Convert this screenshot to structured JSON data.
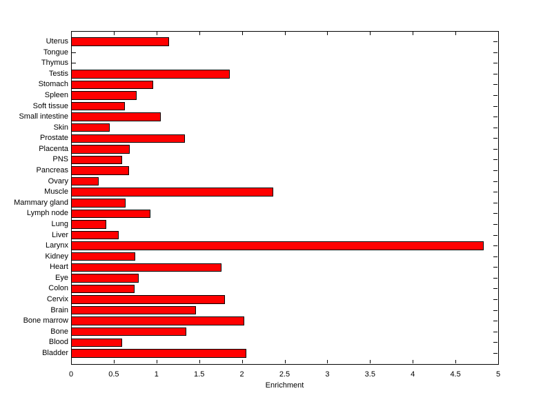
{
  "figure": {
    "background_color": "#FFFFFF",
    "axis_color": "#000000",
    "text_color": "#000000"
  },
  "chart_data": {
    "type": "bar",
    "orientation": "horizontal",
    "title": "",
    "xlabel": "Enrichment",
    "ylabel": "",
    "xlim": [
      0,
      5
    ],
    "grid": false,
    "legend": null,
    "bar_fill_color": "#FF0000",
    "bar_edge_color": "#000000",
    "xticks": [
      0,
      0.5,
      1,
      1.5,
      2,
      2.5,
      3,
      3.5,
      4,
      4.5,
      5
    ],
    "xtick_labels": [
      "0",
      "0.5",
      "1",
      "1.5",
      "2",
      "2.5",
      "3",
      "3.5",
      "4",
      "4.5",
      "5"
    ],
    "categories_order": "top_to_bottom",
    "categories": [
      "Uterus",
      "Tongue",
      "Thymus",
      "Testis",
      "Stomach",
      "Spleen",
      "Soft tissue",
      "Small intestine",
      "Skin",
      "Prostate",
      "Placenta",
      "PNS",
      "Pancreas",
      "Ovary",
      "Muscle",
      "Mammary gland",
      "Lymph node",
      "Lung",
      "Liver",
      "Larynx",
      "Kidney",
      "Heart",
      "Eye",
      "Colon",
      "Cervix",
      "Brain",
      "Bone marrow",
      "Bone",
      "Blood",
      "Bladder"
    ],
    "values": [
      1.15,
      0,
      0,
      1.86,
      0.96,
      0.77,
      0.63,
      1.05,
      0.45,
      1.33,
      0.69,
      0.6,
      0.68,
      0.32,
      2.37,
      0.64,
      0.93,
      0.41,
      0.56,
      4.83,
      0.75,
      1.76,
      0.79,
      0.74,
      1.8,
      1.46,
      2.03,
      1.35,
      0.6,
      2.05
    ]
  }
}
